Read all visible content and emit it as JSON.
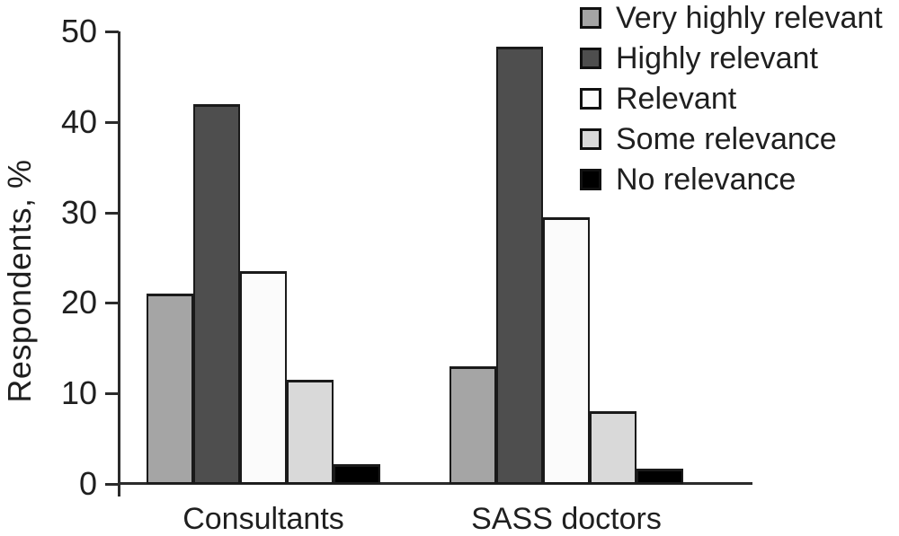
{
  "figure": {
    "background": "#ffffff",
    "text_color": "#1f1f1f",
    "axis_color": "#2b2b2b",
    "bar_border_color": "#1a1a1a"
  },
  "chart_data": {
    "type": "bar",
    "title": "",
    "xlabel": "",
    "ylabel": "Respondents, %",
    "ylim": [
      0,
      50
    ],
    "yticks": [
      0,
      10,
      20,
      30,
      40,
      50
    ],
    "grid": false,
    "legend_position": "top-right",
    "categories": [
      "Consultants",
      "SASS doctors"
    ],
    "series": [
      {
        "name": "Very highly relevant",
        "color": "#a5a5a5",
        "values": [
          21,
          13
        ]
      },
      {
        "name": "Highly relevant",
        "color": "#4e4e4e",
        "values": [
          42,
          48.3
        ]
      },
      {
        "name": "Relevant",
        "color": "#fbfbfb",
        "values": [
          23.5,
          29.5
        ]
      },
      {
        "name": "Some relevance",
        "color": "#d9d9d9",
        "values": [
          11.5,
          8
        ]
      },
      {
        "name": "No relevance",
        "color": "#000000",
        "values": [
          2.2,
          1.7
        ]
      }
    ]
  }
}
